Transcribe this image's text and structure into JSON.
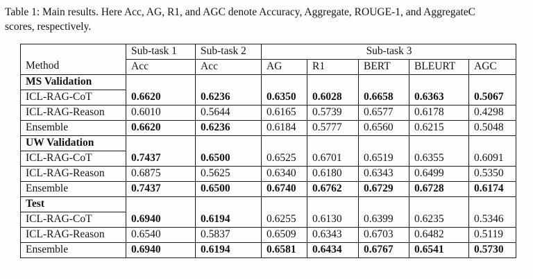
{
  "caption": {
    "line1": "Table 1: Main results. Here Acc, AG, R1, and AGC denote Accuracy, Aggregate, ROUGE-1, and AggregateC",
    "line2": "scores, respectively."
  },
  "table": {
    "header": {
      "method_label": "Method",
      "groups": [
        {
          "label": "Sub-task 1"
        },
        {
          "label": "Sub-task 2"
        },
        {
          "label": "Sub-task 3"
        }
      ],
      "subheaders": [
        "Acc",
        "Acc",
        "AG",
        "R1",
        "BERT",
        "BLEURT",
        "AGC"
      ]
    },
    "sections": [
      {
        "title": "MS Validation",
        "rows": [
          {
            "method": "ICL-RAG-CoT",
            "values": [
              "0.6620",
              "0.6236",
              "0.6350",
              "0.6028",
              "0.6658",
              "0.6363",
              "0.5067"
            ],
            "bold": [
              true,
              true,
              true,
              true,
              true,
              true,
              true
            ]
          },
          {
            "method": "ICL-RAG-Reason",
            "values": [
              "0.6010",
              "0.5644",
              "0.6165",
              "0.5739",
              "0.6577",
              "0.6178",
              "0.4298"
            ],
            "bold": [
              false,
              false,
              false,
              false,
              false,
              false,
              false
            ]
          },
          {
            "method": "Ensemble",
            "values": [
              "0.6620",
              "0.6236",
              "0.6184",
              "0.5777",
              "0.6560",
              "0.6215",
              "0.5048"
            ],
            "bold": [
              true,
              true,
              false,
              false,
              false,
              false,
              false
            ]
          }
        ]
      },
      {
        "title": "UW Validation",
        "rows": [
          {
            "method": "ICL-RAG-CoT",
            "values": [
              "0.7437",
              "0.6500",
              "0.6525",
              "0.6701",
              "0.6519",
              "0.6355",
              "0.6091"
            ],
            "bold": [
              true,
              true,
              false,
              false,
              false,
              false,
              false
            ]
          },
          {
            "method": "ICL-RAG-Reason",
            "values": [
              "0.6875",
              "0.5625",
              "0.6340",
              "0.6180",
              "0.6343",
              "0.6499",
              "0.5350"
            ],
            "bold": [
              false,
              false,
              false,
              false,
              false,
              false,
              false
            ]
          },
          {
            "method": "Ensemble",
            "values": [
              "0.7437",
              "0.6500",
              "0.6740",
              "0.6762",
              "0.6729",
              "0.6728",
              "0.6174"
            ],
            "bold": [
              true,
              true,
              true,
              true,
              true,
              true,
              true
            ]
          }
        ]
      },
      {
        "title": "Test",
        "rows": [
          {
            "method": "ICL-RAG-CoT",
            "values": [
              "0.6940",
              "0.6194",
              "0.6255",
              "0.6130",
              "0.6399",
              "0.6235",
              "0.5346"
            ],
            "bold": [
              true,
              true,
              false,
              false,
              false,
              false,
              false
            ]
          },
          {
            "method": "ICL-RAG-Reason",
            "values": [
              "0.6540",
              "0.5837",
              "0.6509",
              "0.6343",
              "0.6703",
              "0.6482",
              "0.5119"
            ],
            "bold": [
              false,
              false,
              false,
              false,
              false,
              false,
              false
            ]
          },
          {
            "method": "Ensemble",
            "values": [
              "0.6940",
              "0.6194",
              "0.6581",
              "0.6434",
              "0.6767",
              "0.6541",
              "0.5730"
            ],
            "bold": [
              true,
              true,
              true,
              true,
              true,
              true,
              true
            ]
          }
        ]
      }
    ]
  }
}
